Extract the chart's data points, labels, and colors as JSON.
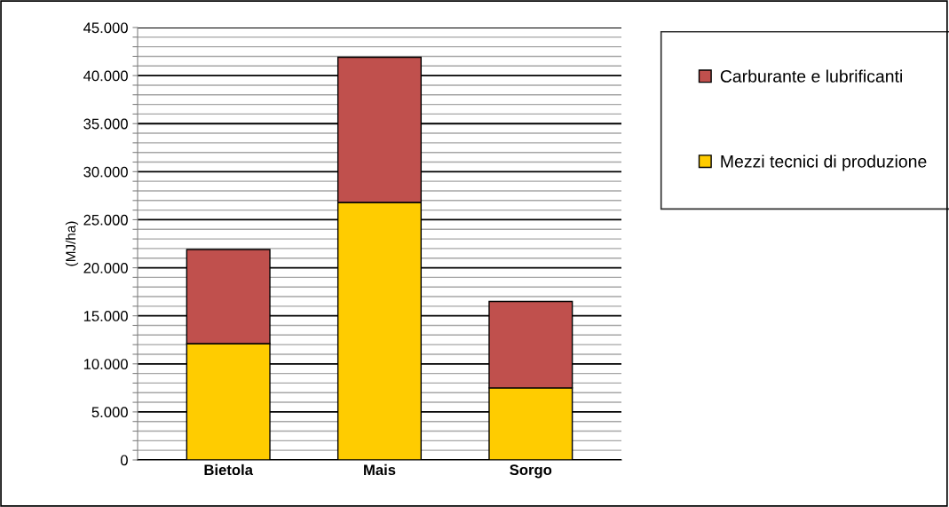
{
  "chart_data": {
    "type": "bar",
    "stacked": true,
    "ylabel": "(MJ/ha)",
    "categories": [
      "Bietola",
      "Mais",
      "Sorgo"
    ],
    "series": [
      {
        "name": "Mezzi tecnici di produzione",
        "color": "#ffcc00",
        "values": [
          12100,
          26800,
          7500
        ]
      },
      {
        "name": "Carburante e lubrificanti",
        "color": "#c0504d",
        "values": [
          9800,
          15100,
          9000
        ]
      }
    ],
    "ylim": [
      0,
      45000
    ],
    "yticks": [
      {
        "value": 0,
        "label": "0"
      },
      {
        "value": 1000,
        "label": null
      },
      {
        "value": 2000,
        "label": null
      },
      {
        "value": 3000,
        "label": null
      },
      {
        "value": 4000,
        "label": null
      },
      {
        "value": 5000,
        "label": "5.000"
      },
      {
        "value": 6000,
        "label": null
      },
      {
        "value": 7000,
        "label": null
      },
      {
        "value": 8000,
        "label": null
      },
      {
        "value": 9000,
        "label": null
      },
      {
        "value": 10000,
        "label": "10.000"
      },
      {
        "value": 11000,
        "label": null
      },
      {
        "value": 12000,
        "label": null
      },
      {
        "value": 13000,
        "label": null
      },
      {
        "value": 14000,
        "label": null
      },
      {
        "value": 15000,
        "label": "15.000"
      },
      {
        "value": 16000,
        "label": null
      },
      {
        "value": 17000,
        "label": null
      },
      {
        "value": 18000,
        "label": null
      },
      {
        "value": 19000,
        "label": null
      },
      {
        "value": 20000,
        "label": "20.000"
      },
      {
        "value": 21000,
        "label": null
      },
      {
        "value": 22000,
        "label": null
      },
      {
        "value": 23000,
        "label": null
      },
      {
        "value": 24000,
        "label": null
      },
      {
        "value": 25000,
        "label": "25.000"
      },
      {
        "value": 26000,
        "label": null
      },
      {
        "value": 27000,
        "label": null
      },
      {
        "value": 28000,
        "label": null
      },
      {
        "value": 29000,
        "label": null
      },
      {
        "value": 30000,
        "label": "30.000"
      },
      {
        "value": 31000,
        "label": null
      },
      {
        "value": 32000,
        "label": null
      },
      {
        "value": 33000,
        "label": null
      },
      {
        "value": 34000,
        "label": null
      },
      {
        "value": 35000,
        "label": "35.000"
      },
      {
        "value": 36000,
        "label": null
      },
      {
        "value": 37000,
        "label": null
      },
      {
        "value": 38000,
        "label": null
      },
      {
        "value": 39000,
        "label": null
      },
      {
        "value": 40000,
        "label": "40.000"
      },
      {
        "value": 41000,
        "label": null
      },
      {
        "value": 42000,
        "label": null
      },
      {
        "value": 43000,
        "label": null
      },
      {
        "value": 44000,
        "label": null
      },
      {
        "value": 45000,
        "label": "45.000"
      }
    ],
    "grid": "y",
    "legend": "right"
  }
}
